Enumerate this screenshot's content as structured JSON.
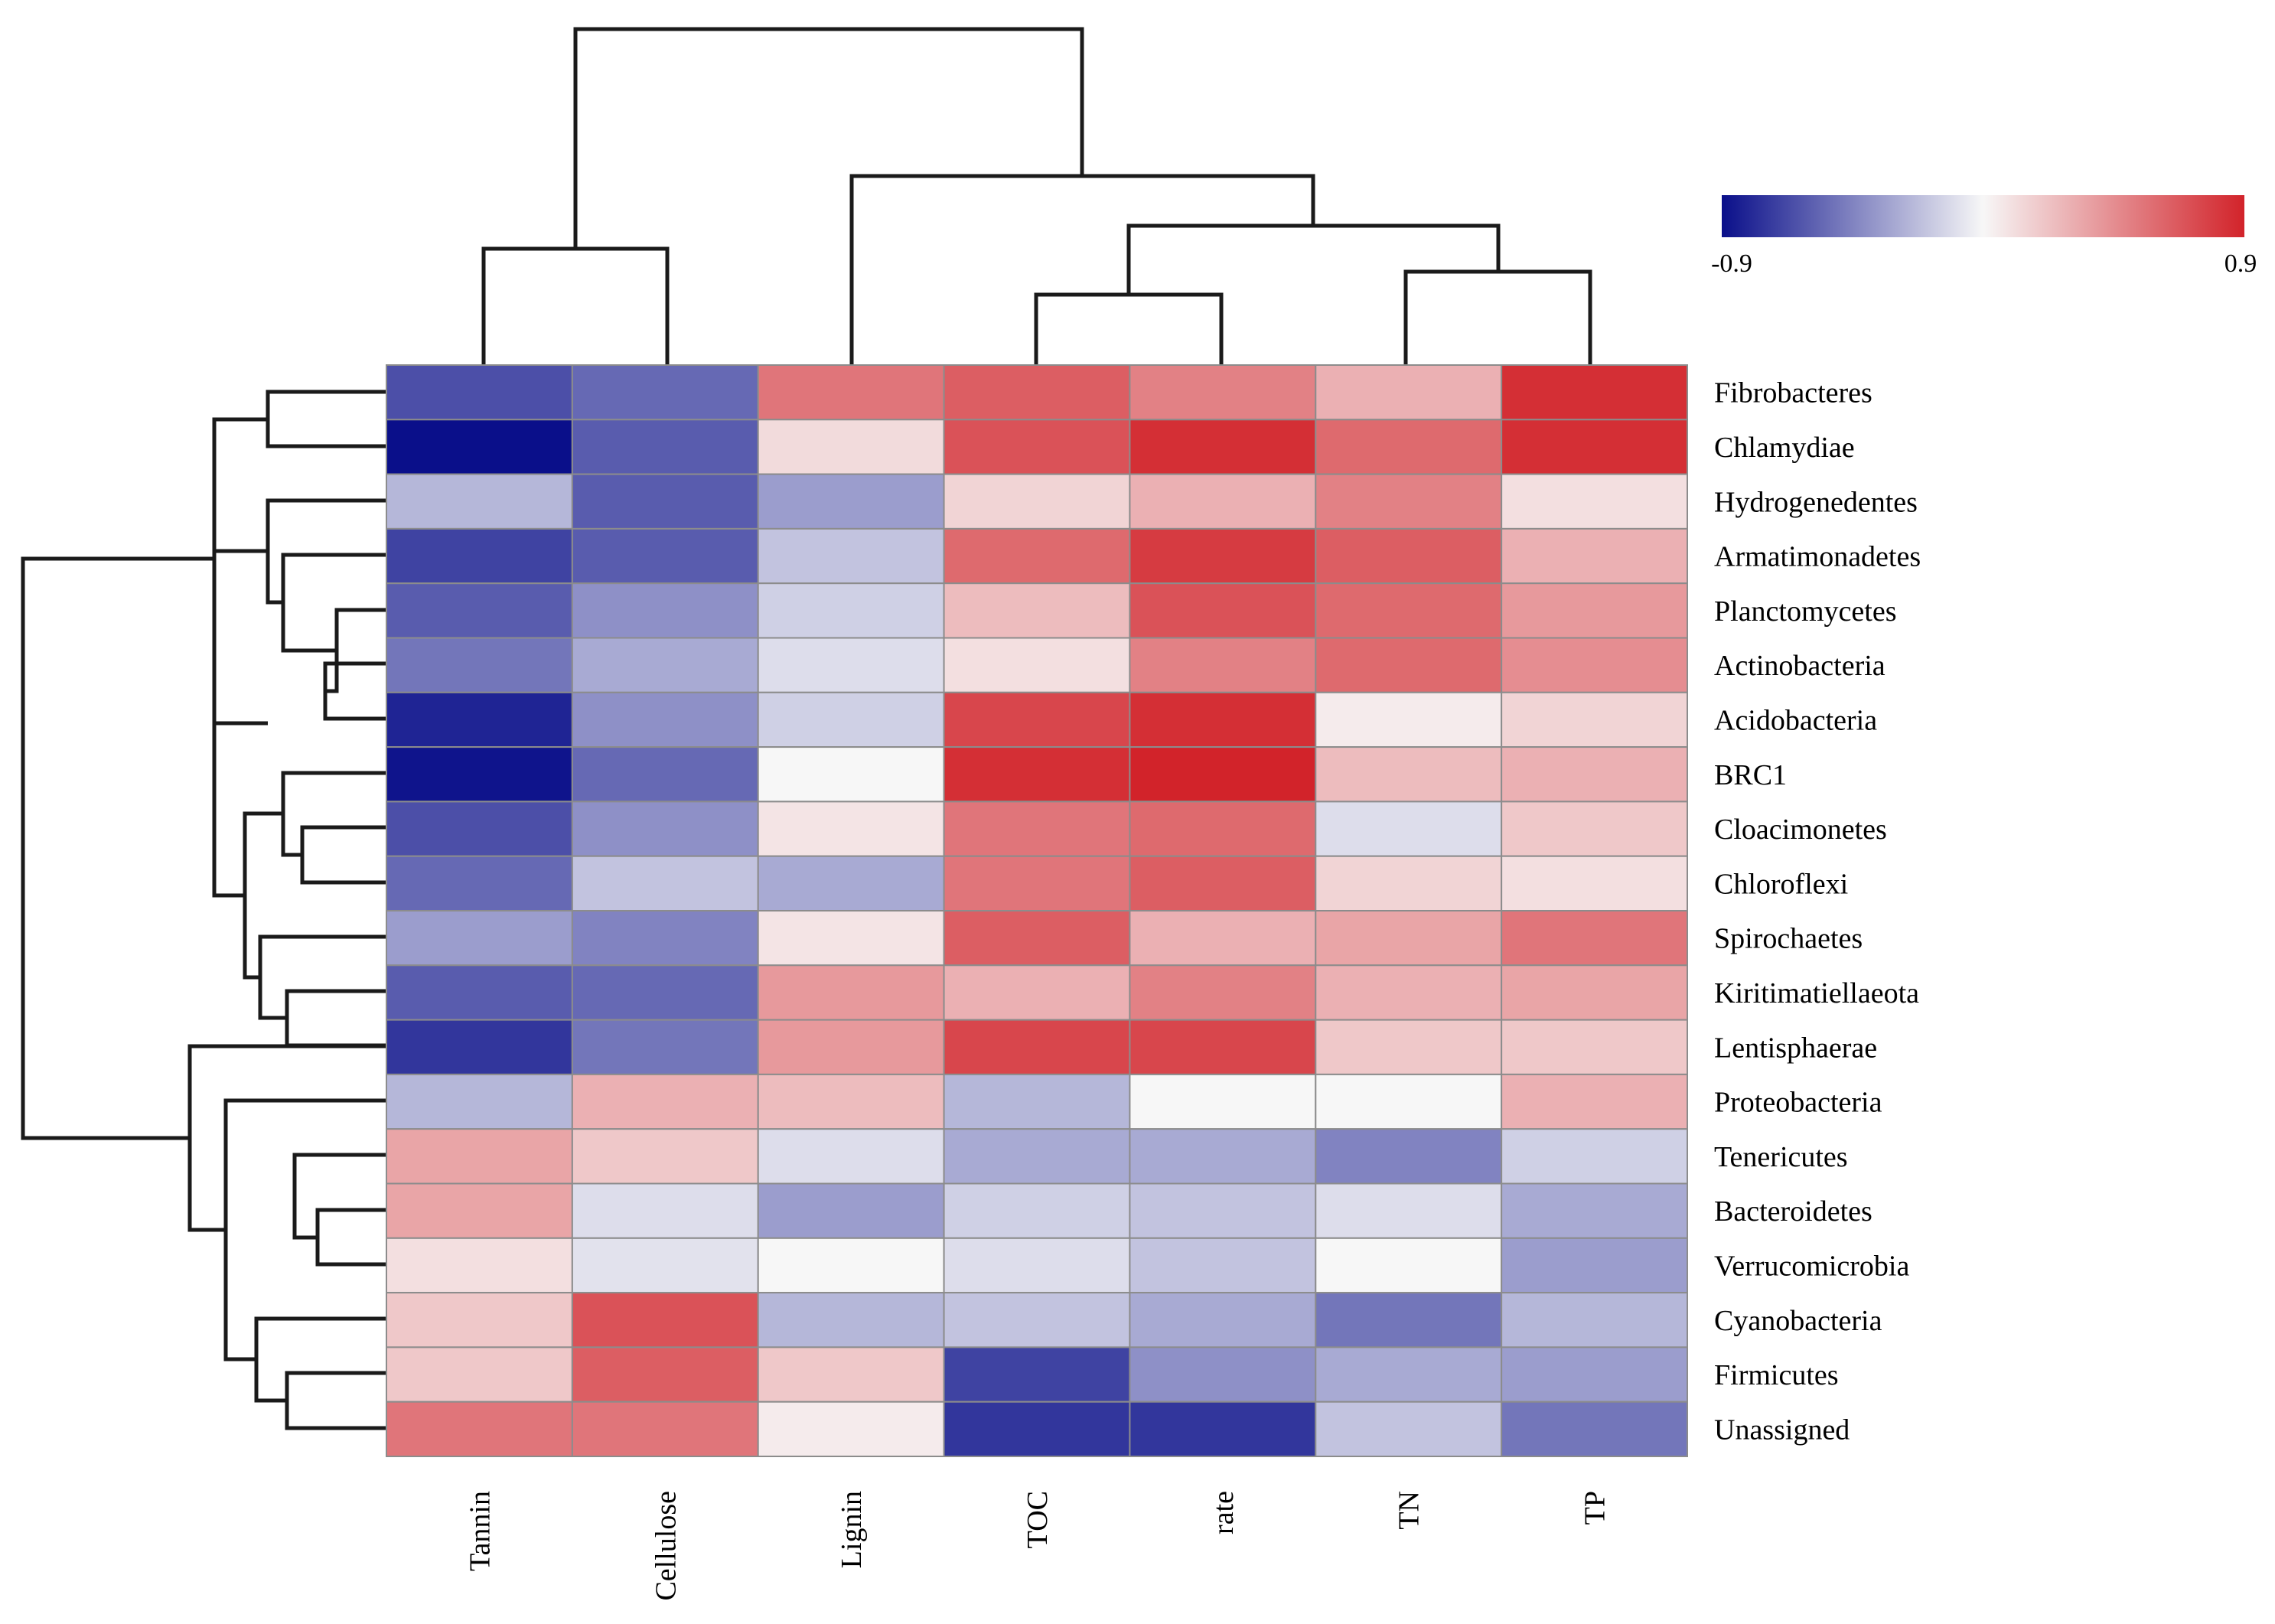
{
  "chart_data": {
    "type": "heatmap",
    "title": "",
    "xlabel": "",
    "ylabel": "",
    "columns": [
      "Tannin",
      "Cellulose",
      "Lignin",
      "TOC",
      "rate",
      "TN",
      "TP"
    ],
    "rows": [
      "Fibrobacteres",
      "Chlamydiae",
      "Hydrogenedentes",
      "Armatimonadetes",
      "Planctomycetes",
      "Actinobacteria",
      "Acidobacteria",
      "BRC1",
      "Cloacimonetes",
      "Chloroflexi",
      "Spirochaetes",
      "Kiritimatiellaeota",
      "Lentisphaerae",
      "Proteobacteria",
      "Tenericutes",
      "Bacteroidetes",
      "Verrucomicrobia",
      "Cyanobacteria",
      "Firmicutes",
      "Unassigned"
    ],
    "values": [
      [
        -0.65,
        -0.55,
        0.55,
        0.65,
        0.5,
        0.3,
        0.85
      ],
      [
        -0.9,
        -0.6,
        0.12,
        0.7,
        0.85,
        0.6,
        0.85
      ],
      [
        -0.25,
        -0.6,
        -0.35,
        0.15,
        0.3,
        0.5,
        0.1
      ],
      [
        -0.7,
        -0.6,
        -0.2,
        0.6,
        0.8,
        0.65,
        0.3
      ],
      [
        -0.6,
        -0.4,
        -0.15,
        0.25,
        0.7,
        0.6,
        0.4
      ],
      [
        -0.5,
        -0.3,
        -0.1,
        0.1,
        0.5,
        0.6,
        0.45
      ],
      [
        -0.82,
        -0.4,
        -0.15,
        0.75,
        0.85,
        0.05,
        0.15
      ],
      [
        -0.88,
        -0.55,
        0.0,
        0.85,
        0.9,
        0.25,
        0.3
      ],
      [
        -0.65,
        -0.4,
        0.08,
        0.55,
        0.6,
        -0.1,
        0.2
      ],
      [
        -0.55,
        -0.2,
        -0.3,
        0.55,
        0.65,
        0.15,
        0.1
      ],
      [
        -0.35,
        -0.45,
        0.08,
        0.65,
        0.3,
        0.35,
        0.55
      ],
      [
        -0.6,
        -0.55,
        0.4,
        0.3,
        0.5,
        0.3,
        0.35
      ],
      [
        -0.75,
        -0.5,
        0.4,
        0.75,
        0.75,
        0.2,
        0.2
      ],
      [
        -0.25,
        0.3,
        0.25,
        -0.25,
        0.0,
        0.0,
        0.3
      ],
      [
        0.35,
        0.2,
        -0.1,
        -0.3,
        -0.3,
        -0.45,
        -0.15
      ],
      [
        0.35,
        -0.1,
        -0.35,
        -0.15,
        -0.2,
        -0.1,
        -0.3
      ],
      [
        0.1,
        -0.08,
        0.0,
        -0.1,
        -0.2,
        0.0,
        -0.35
      ],
      [
        0.2,
        0.7,
        -0.25,
        -0.2,
        -0.3,
        -0.5,
        -0.25
      ],
      [
        0.2,
        0.65,
        0.2,
        -0.7,
        -0.4,
        -0.3,
        -0.35
      ],
      [
        0.55,
        0.55,
        0.05,
        -0.75,
        -0.75,
        -0.2,
        -0.5
      ]
    ],
    "colorscale": {
      "min": -0.9,
      "max": 0.9,
      "min_label": "-0.9",
      "max_label": "0.9",
      "low_color": "#0a0f8a",
      "mid_color": "#f7f7f7",
      "high_color": "#d2232a"
    },
    "row_dendrogram": true,
    "column_dendrogram": true,
    "cell_border_color": "#8c8c8c"
  }
}
